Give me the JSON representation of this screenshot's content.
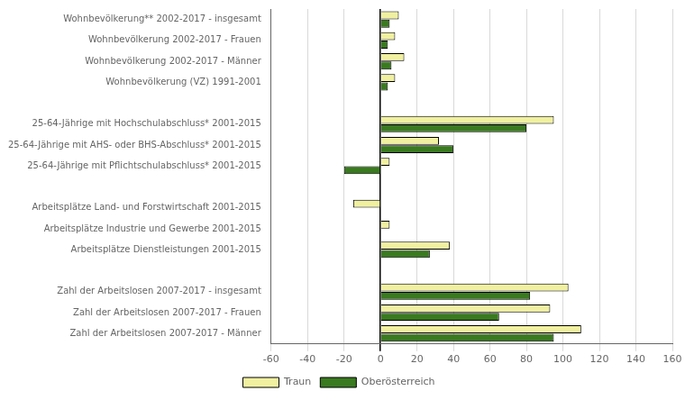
{
  "chart_data": {
    "type": "bar",
    "orientation": "horizontal",
    "categories": [
      "Wohnbevölkerung** 2002-2017 - insgesamt",
      "Wohnbevölkerung 2002-2017 - Frauen",
      "Wohnbevölkerung 2002-2017 - Männer",
      "Wohnbevölkerung (VZ) 1991-2001",
      null,
      "25-64-Jährige mit Hochschulabschluss* 2001-2015",
      "25-64-Jährige mit AHS- oder BHS-Abschluss* 2001-2015",
      "25-64-Jährige mit Pflichtschulabschluss* 2001-2015",
      null,
      "Arbeitsplätze Land- und Forstwirtschaft 2001-2015",
      "Arbeitsplätze Industrie und Gewerbe 2001-2015",
      "Arbeitsplätze Dienstleistungen 2001-2015",
      null,
      "Zahl der Arbeitslosen 2007-2017 - insgesamt",
      "Zahl der Arbeitslosen 2007-2017 - Frauen",
      "Zahl der Arbeitslosen 2007-2017 - Männer"
    ],
    "series": [
      {
        "name": "Traun",
        "color": "#f0f0a0",
        "values": [
          10,
          8,
          13,
          8,
          null,
          95,
          32,
          5,
          null,
          -15,
          5,
          38,
          null,
          103,
          93,
          110
        ]
      },
      {
        "name": "Oberösterreich",
        "color": "#3a7a20",
        "values": [
          5,
          4,
          6,
          4,
          null,
          80,
          40,
          -20,
          null,
          0,
          0,
          27,
          null,
          82,
          65,
          95
        ]
      }
    ],
    "xlim": [
      -60,
      160
    ],
    "xticks": [
      -60,
      -40,
      -20,
      0,
      20,
      40,
      60,
      80,
      100,
      120,
      140,
      160
    ],
    "grid": true,
    "legend": "bottom"
  }
}
